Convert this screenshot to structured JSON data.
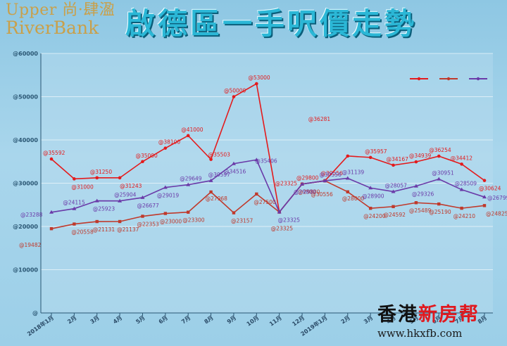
{
  "logo": {
    "line1": "Upper 尚·肆溋",
    "line2": "RiverBank"
  },
  "header": {
    "title": "啟德區一手呎價走勢"
  },
  "watermark": {
    "brand_part1": "香港",
    "brand_part2": "新房帮",
    "url": "www.hkxfb.com"
  },
  "colors": {
    "series_red": "#e41a1c",
    "series_darkred": "#c0392b",
    "series_purple": "#6a3aa8",
    "axis": "#2a5673",
    "title": "#2bb7d6",
    "accent_red": "#e0191f"
  },
  "chart_data": {
    "type": "line",
    "title": "啟德區一手呎價走勢",
    "ylim": [
      0,
      60000
    ],
    "yticks": [
      "@",
      "@10000",
      "@20000",
      "@30000",
      "@40000",
      "@50000",
      "@60000"
    ],
    "ytick_values": [
      0,
      10000,
      20000,
      30000,
      40000,
      50000,
      60000
    ],
    "categories": [
      "2018年1月",
      "2月",
      "3月",
      "4月",
      "5月",
      "6月",
      "7月",
      "8月",
      "9月",
      "10月",
      "11月",
      "12月",
      "2019年1月",
      "2月",
      "3月",
      "4月",
      "5月",
      "6月",
      "7月",
      "8月"
    ],
    "label_prefix": "@",
    "legend": "top-right",
    "grid": true,
    "series": [
      {
        "color": "#e41a1c",
        "values": [
          35592,
          31000,
          31250,
          31243,
          35000,
          38100,
          41000,
          35503,
          50000,
          53000,
          23325,
          29800,
          30556,
          36281,
          35957,
          34167,
          34939,
          36254,
          34412,
          30624
        ],
        "labels": [
          "@35592",
          "@31000",
          "@31250",
          "@31243",
          "@35000",
          "@38100",
          "@41000",
          "@35503",
          "@50000",
          "@53000",
          "@23325",
          "@29800",
          "@30556",
          "@36281",
          "@35957",
          "@34167",
          "@34939",
          "@36254",
          "@34412",
          "@30624"
        ]
      },
      {
        "color": "#c0392b",
        "values": [
          19482,
          20558,
          21131,
          21137,
          22353,
          23000,
          23300,
          27968,
          23157,
          27500,
          23325,
          29800,
          30556,
          28000,
          24200,
          24592,
          25489,
          25190,
          24210,
          24825
        ],
        "labels": [
          "@19482",
          "@20558",
          "@21131",
          "@21137",
          "@22353",
          "@23000",
          "@23300",
          "@27968",
          "@23157",
          "@27500",
          "@23325",
          "@29800",
          "@30556",
          "@28000",
          "@24200",
          "@24592",
          "@25489",
          "@25190",
          "@24210",
          "@24825"
        ]
      },
      {
        "color": "#6a3aa8",
        "values": [
          23288,
          24115,
          25923,
          25904,
          26677,
          29019,
          29649,
          30597,
          34516,
          35406,
          23325,
          29800,
          30556,
          31139,
          28900,
          28057,
          29326,
          30951,
          28509,
          26799
        ],
        "labels": [
          "@23288",
          "@24115",
          "@25923",
          "@25904",
          "@26677",
          "@29019",
          "@29649",
          "@30597",
          "@34516",
          "@35406",
          "@23325",
          "@29800",
          "@30556",
          "@31139",
          "@28900",
          "@28057",
          "@29326",
          "@30951",
          "@28509",
          "@26799"
        ]
      }
    ]
  }
}
